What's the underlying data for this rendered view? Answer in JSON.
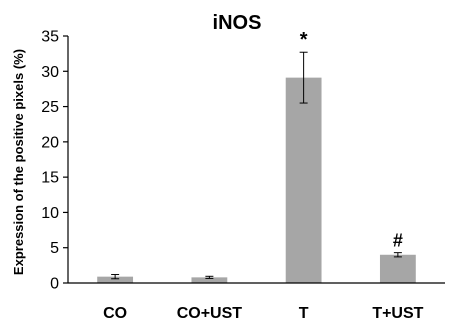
{
  "chart_data": {
    "type": "bar",
    "title": "iNOS",
    "xlabel": "",
    "ylabel": "Expression of the positive pixels (%)",
    "ylim": [
      0,
      35
    ],
    "yticks": [
      0,
      5,
      10,
      15,
      20,
      25,
      30,
      35
    ],
    "categories": [
      "CO",
      "CO+UST",
      "T",
      "T+UST"
    ],
    "values": [
      0.9,
      0.8,
      29.1,
      4.0
    ],
    "errors": [
      0.3,
      0.15,
      3.6,
      0.3
    ],
    "annotations": [
      "",
      "",
      "*",
      "#"
    ],
    "bar_color": "#a6a6a6",
    "grid": false,
    "legend": "none"
  }
}
